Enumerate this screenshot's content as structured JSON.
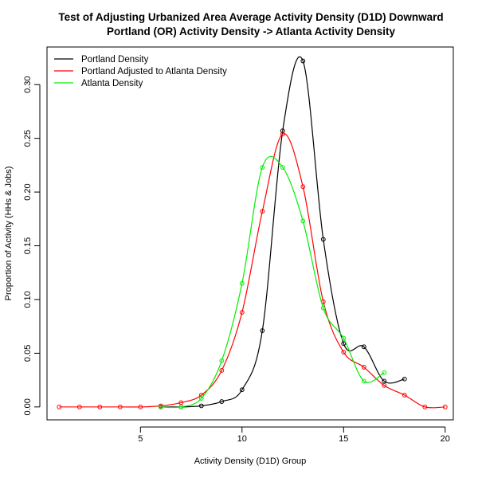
{
  "chart_data": {
    "type": "line",
    "title": "Test of Adjusting Urbanized Area Average Activity Density (D1D) Downward",
    "subtitle": "Portland (OR) Activity Density -> Atlanta Activity Density",
    "xlabel": "Activity Density (D1D) Group",
    "ylabel": "Proportion of Activity (HHs & Jobs)",
    "xlim": [
      0.4,
      20.4
    ],
    "ylim": [
      -0.012,
      0.335
    ],
    "xticks": [
      5,
      10,
      15,
      20
    ],
    "yticks": [
      0.0,
      0.05,
      0.1,
      0.15,
      0.2,
      0.25,
      0.3
    ],
    "ytick_labels": [
      "0.00",
      "0.05",
      "0.10",
      "0.15",
      "0.20",
      "0.25",
      "0.30"
    ],
    "grid": false,
    "legend_position": "top-left",
    "series": [
      {
        "name": "Portland Density",
        "color": "#000000",
        "x": [
          6,
          7,
          8,
          9,
          10,
          11,
          12,
          13,
          14,
          15,
          16,
          17,
          18
        ],
        "y": [
          0.0,
          0.0,
          0.001,
          0.005,
          0.016,
          0.071,
          0.257,
          0.322,
          0.156,
          0.059,
          0.056,
          0.024,
          0.026
        ]
      },
      {
        "name": "Portland Adjusted to Atlanta Density",
        "color": "#ff0000",
        "x": [
          1,
          2,
          3,
          4,
          5,
          6,
          7,
          8,
          9,
          10,
          11,
          12,
          13,
          14,
          15,
          16,
          17,
          18,
          19,
          20
        ],
        "y": [
          0.0,
          0.0,
          0.0,
          0.0,
          0.0,
          0.001,
          0.004,
          0.011,
          0.034,
          0.088,
          0.182,
          0.254,
          0.205,
          0.098,
          0.051,
          0.037,
          0.02,
          0.011,
          0.0,
          0.0
        ]
      },
      {
        "name": "Atlanta Density",
        "color": "#00ee00",
        "x": [
          6,
          7,
          8,
          9,
          10,
          11,
          12,
          13,
          14,
          15,
          16,
          17
        ],
        "y": [
          0.0,
          0.0,
          0.008,
          0.043,
          0.115,
          0.223,
          0.223,
          0.173,
          0.092,
          0.064,
          0.024,
          0.032
        ]
      }
    ]
  }
}
